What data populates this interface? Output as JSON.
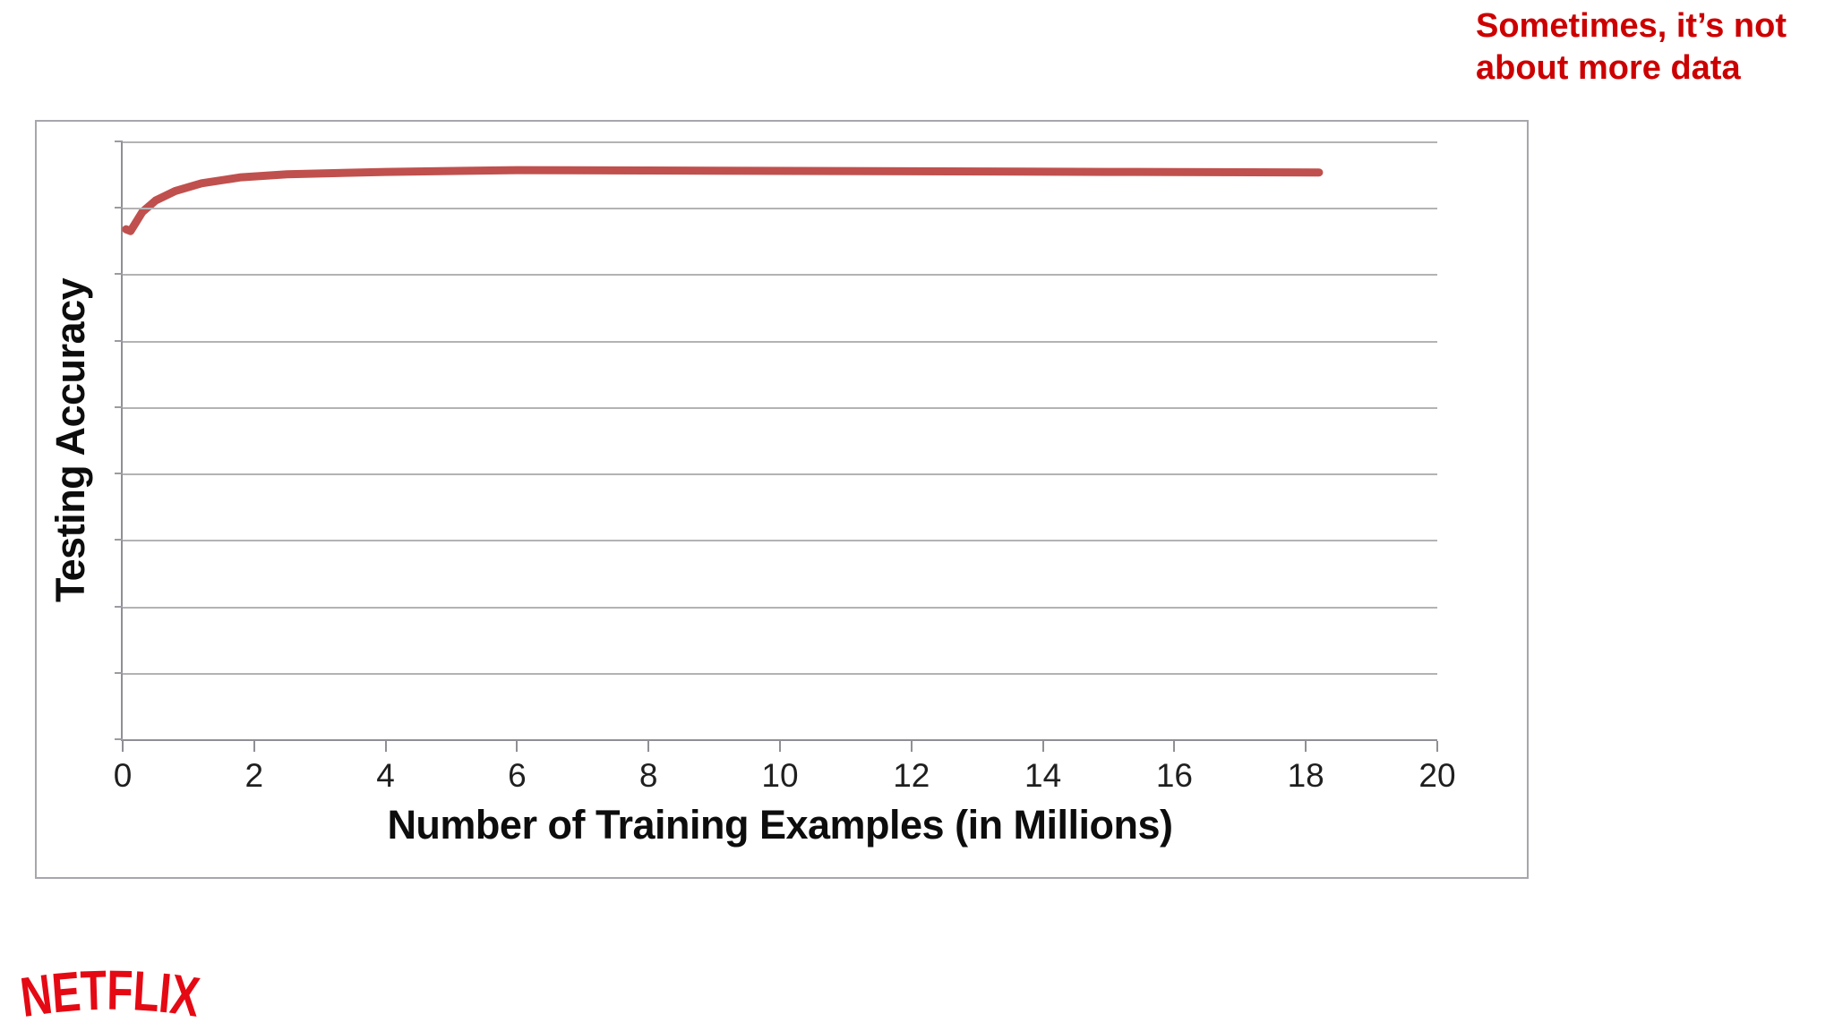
{
  "note": {
    "lines": [
      "Sometimes, it’s not",
      "about more data"
    ],
    "color": "#cc0000"
  },
  "brand": {
    "text": "NETFLIX",
    "color": "#e50914"
  },
  "chart_data": {
    "type": "line",
    "title": "",
    "xlabel": "Number of Training Examples (in Millions)",
    "ylabel": "Testing Accuracy",
    "xlim": [
      0,
      20
    ],
    "ylim": [
      0,
      1
    ],
    "x_ticks": [
      0,
      2,
      4,
      6,
      8,
      10,
      12,
      14,
      16,
      18,
      20
    ],
    "y_tick_labels_visible": false,
    "gridline_rows": 9,
    "grid": "horizontal-only",
    "legend_position": "none",
    "line_color": "#c0504d",
    "line_width": 9,
    "series": [
      {
        "name": "Testing Accuracy",
        "x": [
          0.05,
          0.12,
          0.3,
          0.5,
          0.8,
          1.2,
          1.8,
          2.5,
          4.0,
          6.0,
          9.0,
          12.0,
          15.0,
          18.2
        ],
        "y": [
          0.853,
          0.85,
          0.882,
          0.901,
          0.917,
          0.93,
          0.94,
          0.945,
          0.949,
          0.952,
          0.951,
          0.95,
          0.949,
          0.948
        ]
      }
    ]
  }
}
